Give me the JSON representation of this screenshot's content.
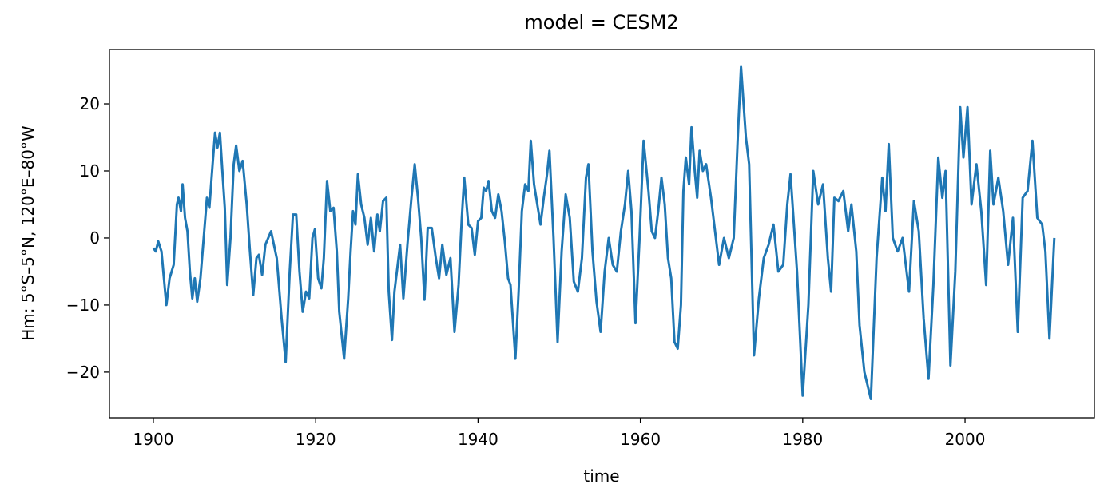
{
  "chart_data": {
    "type": "line",
    "title": "model = CESM2",
    "x_label": "time",
    "y_label": "Hm: 5°S–5°N, 120°E–80°W",
    "xlim": [
      1894.59,
      2015.94
    ],
    "ylim": [
      -26.8,
      28.1
    ],
    "xticks": [
      1900,
      1920,
      1940,
      1960,
      1980,
      2000
    ],
    "yticks": [
      {
        "value": -20,
        "label": "−20"
      },
      {
        "value": -10,
        "label": "−10"
      },
      0,
      10,
      20
    ],
    "series": [
      {
        "color": "#1f77b4",
        "x": [
          1900.0,
          1900.3,
          1900.6,
          1901.0,
          1901.3,
          1901.6,
          1902.0,
          1902.5,
          1902.9,
          1903.1,
          1903.4,
          1903.6,
          1903.9,
          1904.2,
          1904.5,
          1904.8,
          1905.1,
          1905.4,
          1905.8,
          1906.2,
          1906.6,
          1906.9,
          1907.3,
          1907.6,
          1907.9,
          1908.2,
          1908.5,
          1908.8,
          1909.1,
          1909.5,
          1909.9,
          1910.2,
          1910.6,
          1911.0,
          1911.5,
          1911.9,
          1912.3,
          1912.7,
          1913.0,
          1913.4,
          1913.8,
          1914.5,
          1915.2,
          1915.8,
          1916.3,
          1916.8,
          1917.2,
          1917.6,
          1918.0,
          1918.4,
          1918.8,
          1919.2,
          1919.6,
          1919.9,
          1920.3,
          1920.7,
          1921.0,
          1921.4,
          1921.8,
          1922.2,
          1922.6,
          1922.9,
          1923.5,
          1924.0,
          1924.3,
          1924.6,
          1924.9,
          1925.2,
          1925.6,
          1926.0,
          1926.4,
          1926.8,
          1927.2,
          1927.6,
          1927.9,
          1928.3,
          1928.7,
          1929.0,
          1929.4,
          1929.7,
          1930.1,
          1930.4,
          1930.8,
          1931.3,
          1931.8,
          1932.2,
          1932.6,
          1933.0,
          1933.4,
          1933.8,
          1934.3,
          1934.8,
          1935.2,
          1935.6,
          1936.1,
          1936.6,
          1937.1,
          1937.6,
          1938.0,
          1938.3,
          1938.8,
          1939.2,
          1939.6,
          1940.0,
          1940.4,
          1940.7,
          1941.0,
          1941.3,
          1941.7,
          1942.1,
          1942.5,
          1942.9,
          1943.3,
          1943.7,
          1944.0,
          1944.6,
          1945.0,
          1945.4,
          1945.8,
          1946.2,
          1946.5,
          1946.9,
          1947.3,
          1947.7,
          1948.1,
          1948.5,
          1948.8,
          1949.3,
          1949.8,
          1950.3,
          1950.8,
          1951.3,
          1951.8,
          1952.3,
          1952.8,
          1953.3,
          1953.6,
          1954.1,
          1954.6,
          1955.1,
          1955.6,
          1956.1,
          1956.6,
          1957.1,
          1957.6,
          1958.1,
          1958.5,
          1958.9,
          1959.4,
          1959.9,
          1960.4,
          1961.0,
          1961.4,
          1961.8,
          1962.2,
          1962.6,
          1963.0,
          1963.4,
          1963.8,
          1964.2,
          1964.6,
          1965.0,
          1965.3,
          1965.6,
          1966.0,
          1966.3,
          1966.7,
          1967.0,
          1967.3,
          1967.7,
          1968.1,
          1968.7,
          1969.7,
          1970.3,
          1970.9,
          1971.5,
          1972.0,
          1972.4,
          1973.0,
          1973.4,
          1974.0,
          1974.6,
          1975.2,
          1975.8,
          1976.4,
          1977.0,
          1977.6,
          1978.1,
          1978.5,
          1979.3,
          1980.0,
          1980.7,
          1981.3,
          1981.9,
          1982.5,
          1983.1,
          1983.5,
          1983.9,
          1984.4,
          1985.0,
          1985.6,
          1986.0,
          1986.6,
          1987.0,
          1987.6,
          1988.4,
          1989.1,
          1989.8,
          1990.2,
          1990.6,
          1991.1,
          1991.7,
          1992.3,
          1993.1,
          1993.7,
          1994.3,
          1994.9,
          1995.5,
          1996.1,
          1996.7,
          1997.2,
          1997.6,
          1998.2,
          1998.8,
          1999.4,
          1999.8,
          2000.3,
          2000.8,
          2001.4,
          2002.0,
          2002.6,
          2003.1,
          2003.5,
          2004.1,
          2004.7,
          2005.3,
          2005.9,
          2006.5,
          2007.1,
          2007.7,
          2008.3,
          2008.9,
          2009.5,
          2009.9,
          2010.4,
          2011.0
        ],
        "values": [
          -1.5,
          -2,
          -0.5,
          -2,
          -6,
          -10,
          -6,
          -4,
          5,
          6,
          4,
          8,
          3,
          1,
          -5,
          -9,
          -6,
          -9.5,
          -6,
          0,
          6,
          4.5,
          11,
          15.7,
          13.5,
          15.7,
          10,
          4.5,
          -7,
          0,
          11,
          13.8,
          10,
          11.5,
          5,
          -2,
          -8.5,
          -3,
          -2.5,
          -5.5,
          -1,
          1,
          -3,
          -12,
          -18.5,
          -5,
          3.5,
          3.5,
          -5,
          -11,
          -8,
          -9,
          0,
          1.3,
          -6,
          -7.5,
          -3,
          8.5,
          4,
          4.5,
          -2,
          -11,
          -18,
          -9,
          -2,
          4,
          2,
          9.5,
          5,
          3,
          -1,
          3,
          -2,
          3.5,
          1,
          5.5,
          6,
          -8,
          -15.2,
          -8,
          -4,
          -1,
          -9,
          -1,
          6,
          11,
          6,
          0,
          -9.2,
          1.5,
          1.5,
          -3,
          -6,
          -1,
          -5.5,
          -3,
          -14,
          -7,
          3,
          9,
          2,
          1.5,
          -2.5,
          2.5,
          3,
          7.5,
          7,
          8.5,
          4,
          3,
          6.5,
          4,
          -0.5,
          -6,
          -7,
          -18,
          -8,
          4,
          8,
          7,
          14.5,
          8,
          5,
          2,
          6,
          9.5,
          13,
          0,
          -15.5,
          -2,
          6.5,
          3,
          -6.5,
          -8,
          -3,
          9,
          11,
          -2,
          -9.5,
          -14,
          -5,
          0,
          -4,
          -5,
          1,
          5,
          10,
          4,
          -12.7,
          0,
          14.5,
          7,
          1,
          0,
          4,
          9,
          5,
          -3,
          -6,
          -15.5,
          -16.5,
          -10,
          7,
          12,
          8,
          16.5,
          10,
          6,
          13,
          10,
          11,
          6,
          -4,
          0,
          -3,
          0,
          15,
          25.5,
          15,
          11,
          -17.5,
          -9,
          -3,
          -1,
          2,
          -5,
          -4,
          5,
          9.5,
          -5,
          -23.5,
          -10,
          10,
          5,
          8,
          -3,
          -8,
          6,
          5.5,
          7,
          1,
          5,
          -2,
          -13,
          -20,
          -24,
          -3,
          9,
          4,
          14,
          0,
          -2,
          0,
          -8,
          5.5,
          1,
          -12,
          -21,
          -7,
          12,
          6,
          10,
          -19,
          -5,
          19.5,
          12,
          19.5,
          5,
          11,
          4,
          -7,
          13,
          5,
          9,
          4,
          -4,
          3,
          -14,
          6,
          7,
          14.5,
          3,
          2,
          -2,
          -15,
          0
        ]
      }
    ]
  }
}
